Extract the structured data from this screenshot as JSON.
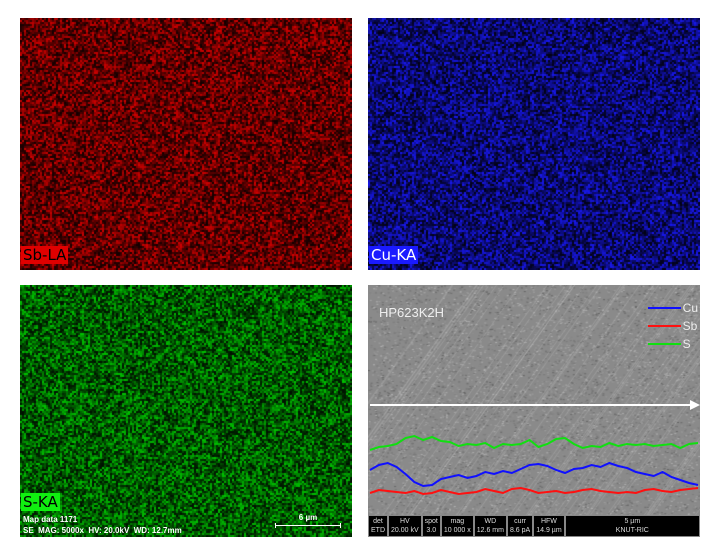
{
  "panels": [
    {
      "label": "Sb-LA",
      "color": "#e00000",
      "label_bg": "#e00000",
      "label_fg": "#000000"
    },
    {
      "label": "Cu-KA",
      "color": "#1a1aff",
      "label_bg": "#1a1aff",
      "label_fg": "#ffffff"
    },
    {
      "label": "S-KA",
      "color": "#00d000",
      "label_bg": "#10f010",
      "label_fg": "#000000"
    }
  ],
  "sem_map": {
    "title": "Map data 1171",
    "params": "SE  MAG: 5000x  HV: 20.0kV  WD: 12.7mm",
    "scale_bar": "6 µm"
  },
  "line_scan": {
    "sample": "HP623K2H",
    "legend": [
      {
        "name": "Cu",
        "color": "#1010ff"
      },
      {
        "name": "Sb",
        "color": "#ff1010"
      },
      {
        "name": "S",
        "color": "#10e010"
      }
    ],
    "infobar": [
      {
        "k": "det",
        "v": "ETD"
      },
      {
        "k": "HV",
        "v": "20.00 kV"
      },
      {
        "k": "spot",
        "v": "3.0"
      },
      {
        "k": "mag",
        "v": "10 000 x"
      },
      {
        "k": "WD",
        "v": "12.6 mm"
      },
      {
        "k": "curr",
        "v": "8.6 pA"
      },
      {
        "k": "HFW",
        "v": "14.9 µm"
      }
    ],
    "scale_bar": "5 µm",
    "lab": "KNUT-RIC"
  },
  "chart_data": {
    "type": "line",
    "series": [
      {
        "name": "S",
        "values": [
          60,
          63,
          64,
          66,
          72,
          74,
          70,
          73,
          69,
          68,
          64,
          66,
          65,
          67,
          62,
          66,
          65,
          66,
          70,
          63,
          66,
          71,
          72,
          66,
          62,
          64,
          63,
          67,
          64,
          66,
          65,
          66,
          64,
          65,
          66,
          62,
          66,
          67
        ]
      },
      {
        "name": "Cu",
        "values": [
          40,
          45,
          47,
          43,
          36,
          28,
          24,
          25,
          31,
          33,
          35,
          32,
          34,
          38,
          36,
          39,
          37,
          41,
          45,
          46,
          44,
          40,
          37,
          41,
          42,
          45,
          43,
          47,
          44,
          42,
          38,
          36,
          34,
          38,
          33,
          30,
          27,
          25
        ]
      },
      {
        "name": "Sb",
        "values": [
          17,
          20,
          19,
          18,
          17,
          19,
          16,
          17,
          20,
          18,
          16,
          17,
          18,
          21,
          19,
          17,
          21,
          22,
          20,
          17,
          18,
          19,
          17,
          18,
          20,
          21,
          19,
          18,
          17,
          18,
          17,
          20,
          21,
          19,
          18,
          20,
          21,
          22
        ]
      }
    ]
  }
}
